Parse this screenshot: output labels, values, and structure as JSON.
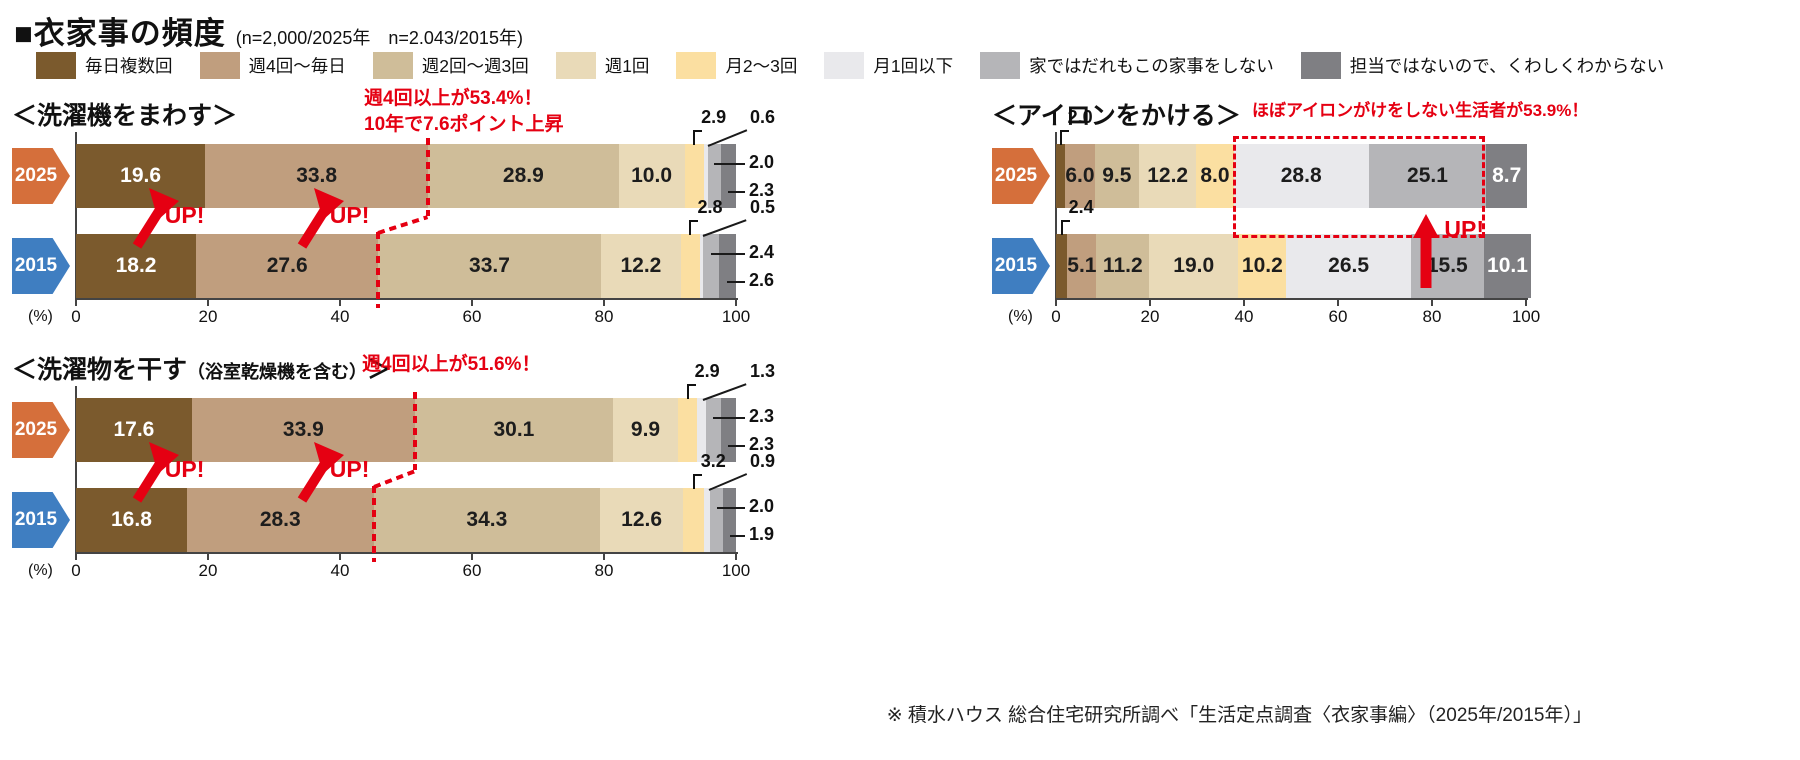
{
  "header": {
    "title": "■衣家事の頻度",
    "sample_note": "(n=2,000/2025年　n=2.043/2015年)"
  },
  "legend": {
    "items": [
      {
        "label": "毎日複数回",
        "color": "#7b5a2d"
      },
      {
        "label": "週4回〜毎日",
        "color": "#c09e7e"
      },
      {
        "label": "週2回〜週3回",
        "color": "#cfbd99"
      },
      {
        "label": "週1回",
        "color": "#e9dab8"
      },
      {
        "label": "月2〜3回",
        "color": "#fbdfa1"
      },
      {
        "label": "月1回以下",
        "color": "#e9e9ec"
      },
      {
        "label": "家ではだれもこの家事をしない",
        "color": "#b5b5b8"
      },
      {
        "label": "担当ではないので、くわしくわからない",
        "color": "#7f7f83"
      }
    ]
  },
  "axis": {
    "unit": "(%)",
    "ticks": [
      0,
      20,
      40,
      60,
      80,
      100
    ]
  },
  "series_meta": {
    "2025": "#d56f3b",
    "2015": "#3f7ec1"
  },
  "up_label": "UP!",
  "accent_red": "#e50012",
  "chart_data": [
    {
      "id": "washing-machine",
      "type": "bar",
      "stacked": true,
      "orientation": "horizontal",
      "title": "＜洗濯機をまわす＞",
      "title_note": "",
      "title_close": "",
      "annotation_lines": [
        "週4回以上が53.4%！",
        "10年で7.6ポイント上昇"
      ],
      "xlim": [
        0,
        100
      ],
      "x_unit": "%",
      "series": [
        {
          "name": "2025",
          "values": [
            19.6,
            33.8,
            28.9,
            10.0,
            2.9,
            0.6,
            2.0,
            2.3
          ]
        },
        {
          "name": "2015",
          "values": [
            18.2,
            27.6,
            33.7,
            12.2,
            2.8,
            0.5,
            2.4,
            2.6
          ]
        }
      ],
      "callouts": {
        "inside": [
          0,
          1,
          2,
          3
        ],
        "bracket_above": [
          4
        ],
        "diag_above": [
          5
        ],
        "right_side": [
          6,
          7
        ],
        "white_inside": [
          0
        ]
      },
      "highlight": {
        "type": "step_divider",
        "after_segment": 2
      },
      "up_arrows": {
        "type": "diagonal",
        "x_pct": [
          8,
          33
        ]
      }
    },
    {
      "id": "laundry-drying",
      "type": "bar",
      "stacked": true,
      "orientation": "horizontal",
      "title": "＜洗濯物を干す",
      "title_note": "（浴室乾燥機を含む）",
      "title_close": "＞",
      "annotation_lines": [
        "週4回以上が51.6%！"
      ],
      "xlim": [
        0,
        100
      ],
      "x_unit": "%",
      "series": [
        {
          "name": "2025",
          "values": [
            17.6,
            33.9,
            30.1,
            9.9,
            2.9,
            1.3,
            2.3,
            2.3
          ]
        },
        {
          "name": "2015",
          "values": [
            16.8,
            28.3,
            34.3,
            12.6,
            3.2,
            0.9,
            2.0,
            1.9
          ]
        }
      ],
      "callouts": {
        "inside": [
          0,
          1,
          2,
          3
        ],
        "bracket_above": [
          4
        ],
        "diag_above": [
          5
        ],
        "right_side": [
          6,
          7
        ],
        "white_inside": [
          0
        ]
      },
      "highlight": {
        "type": "step_divider",
        "after_segment": 2
      },
      "up_arrows": {
        "type": "diagonal",
        "x_pct": [
          8,
          33
        ]
      }
    },
    {
      "id": "ironing",
      "type": "bar",
      "stacked": true,
      "orientation": "horizontal",
      "title": "＜アイロンをかける＞",
      "title_note": "",
      "title_close": "",
      "annotation_lines": [
        "ほぼアイロンがけをしない生活者が53.9%！"
      ],
      "xlim": [
        0,
        100
      ],
      "x_unit": "%",
      "series": [
        {
          "name": "2025",
          "values": [
            2.0,
            6.0,
            9.5,
            12.2,
            8.0,
            28.8,
            25.1,
            8.7
          ]
        },
        {
          "name": "2015",
          "values": [
            2.4,
            5.1,
            11.2,
            19.0,
            10.2,
            26.5,
            15.5,
            10.1
          ]
        }
      ],
      "callouts": {
        "inside": [
          1,
          2,
          3,
          4,
          5,
          6,
          7
        ],
        "bracket_above": [
          0
        ],
        "diag_above": [],
        "right_side": [],
        "white_inside": [
          7
        ]
      },
      "highlight": {
        "type": "dotted_box",
        "segments": [
          5,
          6
        ]
      },
      "up_arrows": {
        "type": "vertical",
        "segment": 6
      }
    }
  ],
  "footer": {
    "source": "※ 積水ハウス 総合住宅研究所調べ「生活定点調査〈衣家事編〉（2025年/2015年）」"
  }
}
